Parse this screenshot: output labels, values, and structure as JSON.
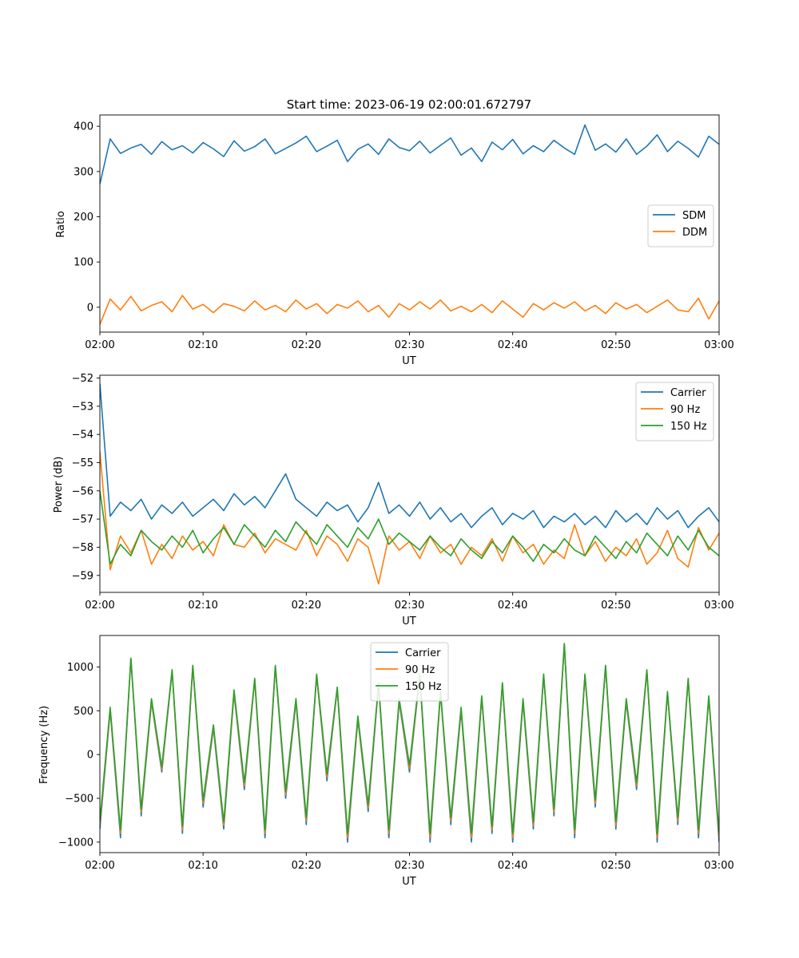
{
  "figure": {
    "title": "Start time: 2023-06-19 02:00:01.672797"
  },
  "chart_data": [
    {
      "type": "line",
      "xlabel": "UT",
      "ylabel": "Ratio",
      "xticks": [
        "02:00",
        "02:10",
        "02:20",
        "02:30",
        "02:40",
        "02:50",
        "03:00"
      ],
      "xlim": [
        "02:00",
        "03:00"
      ],
      "ylim": [
        -55,
        425
      ],
      "yticks": [
        0,
        100,
        200,
        300,
        400
      ],
      "grid": false,
      "legend_position": "center-right",
      "x": [
        "02:00",
        "02:01",
        "02:02",
        "02:03",
        "02:04",
        "02:05",
        "02:06",
        "02:07",
        "02:08",
        "02:09",
        "02:10",
        "02:11",
        "02:12",
        "02:13",
        "02:14",
        "02:15",
        "02:16",
        "02:17",
        "02:18",
        "02:19",
        "02:20",
        "02:21",
        "02:22",
        "02:23",
        "02:24",
        "02:25",
        "02:26",
        "02:27",
        "02:28",
        "02:29",
        "02:30",
        "02:31",
        "02:32",
        "02:33",
        "02:34",
        "02:35",
        "02:36",
        "02:37",
        "02:38",
        "02:39",
        "02:40",
        "02:41",
        "02:42",
        "02:43",
        "02:44",
        "02:45",
        "02:46",
        "02:47",
        "02:48",
        "02:49",
        "02:50",
        "02:51",
        "02:52",
        "02:53",
        "02:54",
        "02:55",
        "02:56",
        "02:57",
        "02:58",
        "02:59",
        "03:00"
      ],
      "series": [
        {
          "name": "SDM",
          "color": "#1f77b4",
          "values": [
            272,
            372,
            340,
            352,
            360,
            338,
            366,
            348,
            357,
            341,
            364,
            350,
            333,
            368,
            345,
            355,
            372,
            339,
            351,
            363,
            378,
            344,
            356,
            369,
            322,
            349,
            361,
            338,
            372,
            353,
            346,
            367,
            341,
            358,
            374,
            336,
            352,
            322,
            365,
            348,
            371,
            339,
            357,
            344,
            369,
            352,
            338,
            403,
            347,
            361,
            343,
            372,
            338,
            356,
            381,
            344,
            367,
            351,
            332,
            378,
            360
          ]
        },
        {
          "name": "DDM",
          "color": "#ff7f0e",
          "values": [
            -38,
            18,
            -6,
            24,
            -8,
            4,
            12,
            -10,
            26,
            -4,
            6,
            -12,
            8,
            2,
            -8,
            14,
            -6,
            4,
            -10,
            16,
            -4,
            8,
            -14,
            6,
            -2,
            14,
            -10,
            4,
            -22,
            8,
            -6,
            12,
            -4,
            16,
            -8,
            2,
            -10,
            6,
            -12,
            14,
            -4,
            -22,
            8,
            -6,
            10,
            -2,
            12,
            -8,
            4,
            -14,
            10,
            -4,
            6,
            -12,
            2,
            16,
            -6,
            -10,
            20,
            -26,
            14
          ]
        }
      ]
    },
    {
      "type": "line",
      "xlabel": "UT",
      "ylabel": "Power (dB)",
      "xticks": [
        "02:00",
        "02:10",
        "02:20",
        "02:30",
        "02:40",
        "02:50",
        "03:00"
      ],
      "xlim": [
        "02:00",
        "03:00"
      ],
      "ylim": [
        -59.6,
        -51.9
      ],
      "yticks": [
        -52,
        -53,
        -54,
        -55,
        -56,
        -57,
        -58,
        -59
      ],
      "grid": false,
      "legend_position": "top-right",
      "x": [
        "02:00",
        "02:01",
        "02:02",
        "02:03",
        "02:04",
        "02:05",
        "02:06",
        "02:07",
        "02:08",
        "02:09",
        "02:10",
        "02:11",
        "02:12",
        "02:13",
        "02:14",
        "02:15",
        "02:16",
        "02:17",
        "02:18",
        "02:19",
        "02:20",
        "02:21",
        "02:22",
        "02:23",
        "02:24",
        "02:25",
        "02:26",
        "02:27",
        "02:28",
        "02:29",
        "02:30",
        "02:31",
        "02:32",
        "02:33",
        "02:34",
        "02:35",
        "02:36",
        "02:37",
        "02:38",
        "02:39",
        "02:40",
        "02:41",
        "02:42",
        "02:43",
        "02:44",
        "02:45",
        "02:46",
        "02:47",
        "02:48",
        "02:49",
        "02:50",
        "02:51",
        "02:52",
        "02:53",
        "02:54",
        "02:55",
        "02:56",
        "02:57",
        "02:58",
        "02:59",
        "03:00"
      ],
      "series": [
        {
          "name": "Carrier",
          "color": "#1f77b4",
          "values": [
            -52.2,
            -56.9,
            -56.4,
            -56.7,
            -56.3,
            -57.0,
            -56.5,
            -56.8,
            -56.4,
            -56.9,
            -56.6,
            -56.3,
            -56.7,
            -56.1,
            -56.5,
            -56.2,
            -56.6,
            -56.0,
            -55.4,
            -56.3,
            -56.6,
            -56.9,
            -56.4,
            -56.7,
            -56.5,
            -57.1,
            -56.6,
            -55.7,
            -56.8,
            -56.5,
            -56.9,
            -56.4,
            -57.0,
            -56.6,
            -57.1,
            -56.8,
            -57.3,
            -56.9,
            -56.6,
            -57.2,
            -56.8,
            -57.0,
            -56.7,
            -57.3,
            -56.9,
            -57.1,
            -56.8,
            -57.2,
            -56.9,
            -57.3,
            -56.7,
            -57.1,
            -56.8,
            -57.2,
            -56.6,
            -57.0,
            -56.7,
            -57.3,
            -56.9,
            -56.6,
            -57.1
          ]
        },
        {
          "name": "90 Hz",
          "color": "#ff7f0e",
          "values": [
            -54.6,
            -58.8,
            -57.6,
            -58.2,
            -57.4,
            -58.6,
            -57.9,
            -58.4,
            -57.6,
            -58.1,
            -57.8,
            -58.3,
            -57.2,
            -57.9,
            -58.0,
            -57.5,
            -58.2,
            -57.7,
            -57.9,
            -58.1,
            -57.4,
            -58.3,
            -57.6,
            -57.9,
            -58.5,
            -57.7,
            -58.0,
            -59.3,
            -57.6,
            -58.1,
            -57.8,
            -58.4,
            -57.6,
            -58.2,
            -57.9,
            -58.6,
            -58.0,
            -58.3,
            -57.7,
            -58.5,
            -57.6,
            -58.2,
            -57.9,
            -58.6,
            -58.1,
            -58.4,
            -57.2,
            -58.3,
            -57.8,
            -58.5,
            -58.0,
            -58.3,
            -57.7,
            -58.6,
            -58.2,
            -57.4,
            -58.4,
            -58.7,
            -57.3,
            -58.1,
            -57.5
          ]
        },
        {
          "name": "150 Hz",
          "color": "#2ca02c",
          "values": [
            -56.0,
            -58.6,
            -57.9,
            -58.3,
            -57.4,
            -57.8,
            -58.1,
            -57.6,
            -58.0,
            -57.4,
            -58.2,
            -57.7,
            -57.3,
            -57.9,
            -57.2,
            -57.6,
            -58.0,
            -57.4,
            -57.8,
            -57.1,
            -57.5,
            -57.9,
            -57.2,
            -57.6,
            -58.0,
            -57.3,
            -57.7,
            -57.0,
            -57.9,
            -57.5,
            -57.8,
            -58.1,
            -57.6,
            -58.0,
            -58.3,
            -57.7,
            -58.1,
            -58.4,
            -57.8,
            -58.2,
            -57.6,
            -58.0,
            -58.5,
            -57.9,
            -58.2,
            -57.7,
            -58.1,
            -58.3,
            -57.6,
            -58.0,
            -58.4,
            -57.8,
            -58.2,
            -57.5,
            -57.9,
            -58.3,
            -57.6,
            -58.1,
            -57.4,
            -58.0,
            -58.3
          ]
        }
      ]
    },
    {
      "type": "line",
      "xlabel": "UT",
      "ylabel": "Frequency (Hz)",
      "xticks": [
        "02:00",
        "02:10",
        "02:20",
        "02:30",
        "02:40",
        "02:50",
        "03:00"
      ],
      "xlim": [
        "02:00",
        "03:00"
      ],
      "ylim": [
        -1120,
        1360
      ],
      "yticks": [
        1000,
        500,
        0,
        -500,
        -1000
      ],
      "grid": false,
      "legend_position": "top-center",
      "x": [
        "02:00",
        "02:01",
        "02:02",
        "02:03",
        "02:04",
        "02:05",
        "02:06",
        "02:07",
        "02:08",
        "02:09",
        "02:10",
        "02:11",
        "02:12",
        "02:13",
        "02:14",
        "02:15",
        "02:16",
        "02:17",
        "02:18",
        "02:19",
        "02:20",
        "02:21",
        "02:22",
        "02:23",
        "02:24",
        "02:25",
        "02:26",
        "02:27",
        "02:28",
        "02:29",
        "02:30",
        "02:31",
        "02:32",
        "02:33",
        "02:34",
        "02:35",
        "02:36",
        "02:37",
        "02:38",
        "02:39",
        "02:40",
        "02:41",
        "02:42",
        "02:43",
        "02:44",
        "02:45",
        "02:46",
        "02:47",
        "02:48",
        "02:49",
        "02:50",
        "02:51",
        "02:52",
        "02:53",
        "02:54",
        "02:55",
        "02:56",
        "02:57",
        "02:58",
        "02:59",
        "03:00"
      ],
      "series": [
        {
          "name": "Carrier",
          "color": "#1f77b4",
          "values": [
            -850,
            500,
            -950,
            1100,
            -700,
            600,
            -200,
            950,
            -900,
            1000,
            -600,
            300,
            -850,
            700,
            -400,
            850,
            -950,
            1000,
            -500,
            600,
            -800,
            900,
            -300,
            750,
            -1000,
            400,
            -650,
            800,
            -950,
            600,
            -200,
            900,
            -1000,
            700,
            -800,
            500,
            -1000,
            650,
            -900,
            800,
            -1000,
            600,
            -850,
            900,
            -700,
            1250,
            -950,
            900,
            -600,
            1000,
            -850,
            600,
            -400,
            950,
            -1000,
            700,
            -800,
            850,
            -950,
            650,
            -1000
          ]
        },
        {
          "name": "90 Hz",
          "color": "#ff7f0e",
          "values": [
            -800,
            520,
            -900,
            1100,
            -660,
            620,
            -170,
            960,
            -860,
            1010,
            -560,
            320,
            -810,
            720,
            -360,
            860,
            -900,
            1010,
            -460,
            620,
            -760,
            910,
            -260,
            760,
            -950,
            420,
            -610,
            810,
            -900,
            620,
            -160,
            910,
            -950,
            710,
            -760,
            520,
            -950,
            660,
            -860,
            810,
            -950,
            620,
            -810,
            910,
            -660,
            1260,
            -900,
            910,
            -560,
            1010,
            -810,
            620,
            -360,
            960,
            -950,
            710,
            -760,
            860,
            -900,
            660,
            -950
          ]
        },
        {
          "name": "150 Hz",
          "color": "#2ca02c",
          "values": [
            -760,
            540,
            -860,
            1100,
            -620,
            640,
            -140,
            970,
            -820,
            1020,
            -520,
            340,
            -770,
            740,
            -320,
            870,
            -860,
            1020,
            -420,
            640,
            -720,
            920,
            -220,
            770,
            -900,
            440,
            -570,
            820,
            -860,
            640,
            -120,
            920,
            -900,
            720,
            -720,
            540,
            -900,
            670,
            -820,
            820,
            -900,
            640,
            -770,
            920,
            -620,
            1270,
            -860,
            920,
            -520,
            1020,
            -770,
            640,
            -320,
            970,
            -900,
            720,
            -720,
            870,
            -860,
            670,
            -900
          ]
        }
      ]
    }
  ]
}
